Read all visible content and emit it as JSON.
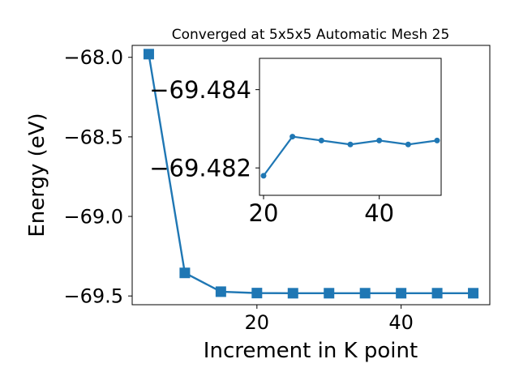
{
  "chart_data": [
    {
      "type": "line",
      "title": "Converged at 5x5x5 Automatic Mesh 25",
      "xlabel": "Increment in K point",
      "ylabel": "Energy (eV)",
      "xlim": [
        2.7,
        52.3
      ],
      "ylim": [
        -69.555,
        -67.925
      ],
      "xticks": [
        20,
        40
      ],
      "xtick_labels": [
        "20",
        "40"
      ],
      "yticks": [
        -68.0,
        -68.5,
        -69.0,
        -69.5
      ],
      "ytick_labels": [
        "−68.0",
        "−68.5",
        "−69.0",
        "−69.5"
      ],
      "marker": "square",
      "color": "#1f77b4",
      "grid": false,
      "x": [
        5,
        10,
        15,
        20,
        25,
        30,
        35,
        40,
        45,
        50
      ],
      "y": [
        -67.98,
        -69.355,
        -69.473,
        -69.4818,
        -69.4828,
        -69.4827,
        -69.4826,
        -69.4827,
        -69.4826,
        -69.4827
      ]
    },
    {
      "type": "line",
      "role": "inset",
      "title": "",
      "xlabel": "",
      "ylabel": "",
      "xlim": [
        19.3,
        50.7
      ],
      "ylim": [
        -69.4813,
        -69.4848
      ],
      "y_inverted": true,
      "xticks": [
        20,
        40
      ],
      "xtick_labels": [
        "20",
        "40"
      ],
      "yticks": [
        -69.482,
        -69.484
      ],
      "ytick_labels": [
        "−69.482",
        "−69.484"
      ],
      "marker": "circle",
      "color": "#1f77b4",
      "grid": false,
      "x": [
        20,
        25,
        30,
        35,
        40,
        45,
        50
      ],
      "y": [
        -69.4818,
        -69.4828,
        -69.4827,
        -69.4826,
        -69.4827,
        -69.4826,
        -69.4827
      ]
    }
  ]
}
